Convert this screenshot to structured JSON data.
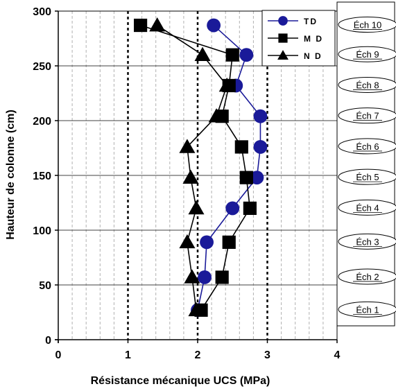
{
  "chart_data": {
    "type": "line",
    "title": "",
    "xlabel": "Résistance mécanique UCS (MPa)",
    "ylabel": "Hauteur de colonne (cm)",
    "xlim": [
      0,
      4
    ],
    "ylim": [
      0,
      300
    ],
    "x_ticks": [
      "0",
      "1",
      "2",
      "3",
      "4"
    ],
    "y_ticks": [
      "0",
      "50",
      "100",
      "150",
      "200",
      "250",
      "300"
    ],
    "grid": "horizontal solid, vertical dashed",
    "reference_lines_x": [
      1,
      2,
      3
    ],
    "legend_position": "top-right",
    "series": [
      {
        "name": "TD",
        "color": "#1a1a99",
        "marker": "circle",
        "points": [
          [
            2.0,
            27
          ],
          [
            2.1,
            57
          ],
          [
            2.13,
            89
          ],
          [
            2.5,
            120
          ],
          [
            2.85,
            148
          ],
          [
            2.9,
            176
          ],
          [
            2.9,
            204
          ],
          [
            2.55,
            232
          ],
          [
            2.7,
            260
          ],
          [
            2.23,
            287
          ]
        ]
      },
      {
        "name": "M D",
        "color": "#000000",
        "marker": "square",
        "points": [
          [
            2.05,
            27
          ],
          [
            2.35,
            57
          ],
          [
            2.45,
            89
          ],
          [
            2.75,
            120
          ],
          [
            2.7,
            148
          ],
          [
            2.63,
            176
          ],
          [
            2.35,
            204
          ],
          [
            2.45,
            232
          ],
          [
            2.5,
            260
          ],
          [
            1.18,
            287
          ]
        ]
      },
      {
        "name": "N D",
        "color": "#000000",
        "marker": "triangle",
        "points": [
          [
            1.98,
            27
          ],
          [
            1.92,
            57
          ],
          [
            1.85,
            89
          ],
          [
            1.98,
            120
          ],
          [
            1.9,
            148
          ],
          [
            1.85,
            176
          ],
          [
            2.27,
            204
          ],
          [
            2.42,
            232
          ],
          [
            2.07,
            260
          ],
          [
            1.42,
            287
          ]
        ]
      }
    ],
    "samples": [
      {
        "label": "Éch 10",
        "y": 287
      },
      {
        "label": "Éch 9",
        "y": 260
      },
      {
        "label": "Éch 8",
        "y": 232
      },
      {
        "label": "Éch 7",
        "y": 204
      },
      {
        "label": "Éch 6",
        "y": 176
      },
      {
        "label": "Éch 5",
        "y": 148
      },
      {
        "label": "Éch 4",
        "y": 120
      },
      {
        "label": "Éch 3",
        "y": 89
      },
      {
        "label": "Éch 2",
        "y": 57
      },
      {
        "label": "Éch 1",
        "y": 27
      }
    ]
  }
}
